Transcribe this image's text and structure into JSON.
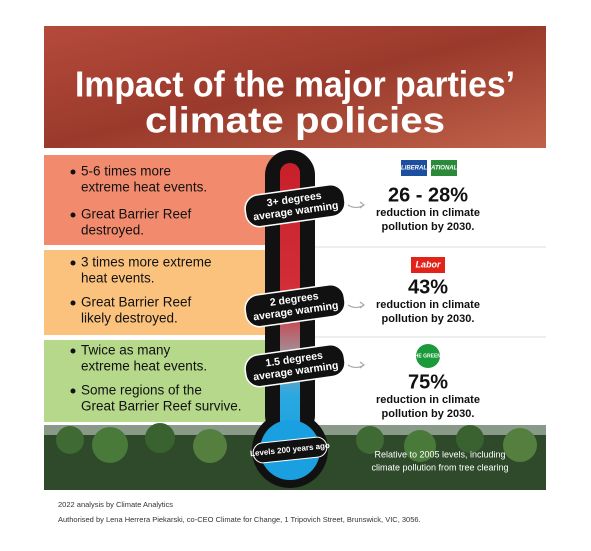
{
  "header": {
    "title_lines": [
      "Impact of the major parties’",
      "climate policies"
    ]
  },
  "rows": [
    {
      "bullets": [
        [
          "5-6 times more",
          "extreme heat events."
        ],
        [
          "Great Barrier Reef",
          "destroyed."
        ]
      ],
      "warming": [
        "3+ degrees",
        "average warming"
      ],
      "parties": [
        "LIBERAL",
        "NATIONALS"
      ],
      "result": "26 - 28%",
      "result_text": [
        "reduction in climate",
        "pollution by 2030."
      ]
    },
    {
      "bullets": [
        [
          "3 times more extreme",
          "heat events."
        ],
        [
          "Great Barrier Reef",
          "likely destroyed."
        ]
      ],
      "warming": [
        "2 degrees",
        "average warming"
      ],
      "parties": [
        "Labor"
      ],
      "result": "43%",
      "result_text": [
        "reduction in climate",
        "pollution by 2030."
      ]
    },
    {
      "bullets": [
        [
          "Twice as many",
          "extreme heat events."
        ],
        [
          "Some regions of the",
          "Great Barrier Reef survive."
        ]
      ],
      "warming": [
        "1.5 degrees",
        "average warming"
      ],
      "parties": [
        "THE GREENS"
      ],
      "result": "75%",
      "result_text": [
        "reduction in climate",
        "pollution by 2030."
      ]
    }
  ],
  "bulb_label": "Levels 200 years ago",
  "note": [
    "Relative to 2005 levels, including",
    "climate pollution from tree clearing"
  ],
  "footer": [
    "2022 analysis by Climate Analytics",
    "Authorised by Lena Herrera Piekarski, co-CEO Climate for Change, 1 Tripovich Street, Brunswick, VIC, 3056."
  ]
}
